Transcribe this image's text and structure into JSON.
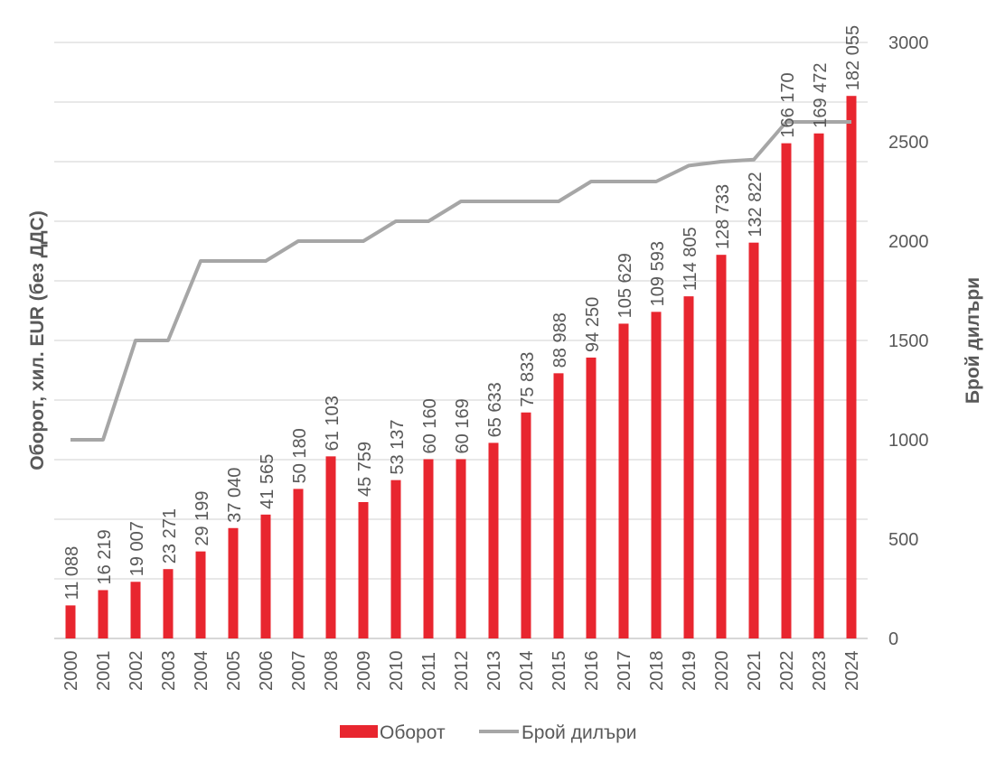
{
  "chart_data": {
    "type": "bar+line",
    "title": "",
    "categories": [
      "2000",
      "2001",
      "2002",
      "2003",
      "2004",
      "2005",
      "2006",
      "2007",
      "2008",
      "2009",
      "2010",
      "2011",
      "2012",
      "2013",
      "2014",
      "2015",
      "2016",
      "2017",
      "2018",
      "2019",
      "2020",
      "2021",
      "2022",
      "2023",
      "2024"
    ],
    "series": [
      {
        "name": "Оборот",
        "type": "bar",
        "axis": "left",
        "color": "#E8262F",
        "values": [
          11088,
          16219,
          19007,
          23271,
          29199,
          37040,
          41565,
          50180,
          61103,
          45759,
          53137,
          60160,
          60169,
          65633,
          75833,
          88988,
          94250,
          105629,
          109593,
          114805,
          128733,
          132822,
          166170,
          169472,
          182055
        ],
        "labels": [
          "11 088",
          "16 219",
          "19 007",
          "23 271",
          "29 199",
          "37 040",
          "41 565",
          "50 180",
          "61 103",
          "45 759",
          "53 137",
          "60 160",
          "60 169",
          "65 633",
          "75 833",
          "88 988",
          "94 250",
          "105 629",
          "109 593",
          "114 805",
          "128 733",
          "132 822",
          "166 170",
          "169 472",
          "182 055"
        ]
      },
      {
        "name": "Брой дилъри",
        "type": "line",
        "axis": "right",
        "color": "#A6A6A6",
        "values": [
          1000,
          1000,
          1500,
          1500,
          1900,
          1900,
          1900,
          2000,
          2000,
          2000,
          2100,
          2100,
          2200,
          2200,
          2200,
          2200,
          2300,
          2300,
          2300,
          2380,
          2400,
          2410,
          2600,
          2600,
          2600
        ]
      }
    ],
    "ylabel": "Оборот, хил. EUR (без ДДС)",
    "y2label": "Брой дилъри",
    "ylim": [
      0,
      200000
    ],
    "y2lim": [
      0,
      3000
    ],
    "y2ticks": [
      "0",
      "500",
      "1000",
      "1500",
      "2000",
      "2500",
      "3000"
    ],
    "y2tick_values": [
      0,
      500,
      1000,
      1500,
      2000,
      2500,
      3000
    ],
    "grid": true,
    "grid_step_left": 20000,
    "legend": {
      "placement": "bottom",
      "items": [
        "Оборот",
        "Брой дилъри"
      ]
    }
  }
}
